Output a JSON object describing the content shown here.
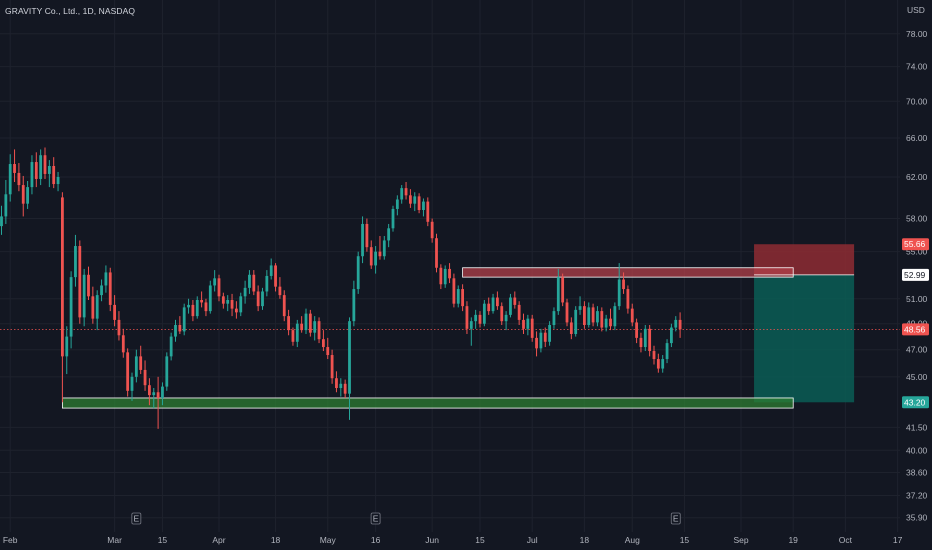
{
  "header": {
    "symbol": "GRAVITY Co., Ltd., 1D, NASDAQ"
  },
  "colors": {
    "background": "#131722",
    "grid": "#1e222d",
    "up": "#26a69a",
    "down": "#ef5350",
    "text": "#b2b5be",
    "support_zone": "#2e7d32",
    "resistance_zone": "#b2404a",
    "stop_zone": "#8e2c33",
    "target_zone": "#0b5d55"
  },
  "chart_data": {
    "type": "candlestick",
    "y_unit": "USD",
    "ylim": [
      35.2,
      80.0
    ],
    "y_scale": "log",
    "grid": true,
    "y_ticks": [
      {
        "value": 78.0,
        "label": "78.00"
      },
      {
        "value": 74.0,
        "label": "74.00"
      },
      {
        "value": 70.0,
        "label": "70.00"
      },
      {
        "value": 66.0,
        "label": "66.00"
      },
      {
        "value": 62.0,
        "label": "62.00"
      },
      {
        "value": 58.0,
        "label": "58.00"
      },
      {
        "value": 55.0,
        "label": "55.00"
      },
      {
        "value": 51.0,
        "label": "51.00"
      },
      {
        "value": 49.0,
        "label": "49.00"
      },
      {
        "value": 47.0,
        "label": "47.00"
      },
      {
        "value": 45.0,
        "label": "45.00"
      },
      {
        "value": 41.5,
        "label": "41.50"
      },
      {
        "value": 40.0,
        "label": "40.00"
      },
      {
        "value": 38.6,
        "label": "38.60"
      },
      {
        "value": 37.2,
        "label": "37.20"
      },
      {
        "value": 35.9,
        "label": "35.90"
      }
    ],
    "x_ticks": [
      {
        "index": 2,
        "label": "Feb"
      },
      {
        "index": 26,
        "label": "Mar"
      },
      {
        "index": 37,
        "label": "15"
      },
      {
        "index": 50,
        "label": "Apr"
      },
      {
        "index": 63,
        "label": "18"
      },
      {
        "index": 75,
        "label": "May"
      },
      {
        "index": 86,
        "label": "16"
      },
      {
        "index": 99,
        "label": "Jun"
      },
      {
        "index": 110,
        "label": "15"
      },
      {
        "index": 122,
        "label": "Jul"
      },
      {
        "index": 134,
        "label": "18"
      },
      {
        "index": 145,
        "label": "Aug"
      },
      {
        "index": 157,
        "label": "15"
      },
      {
        "index": 170,
        "label": "Sep"
      },
      {
        "index": 182,
        "label": "19"
      },
      {
        "index": 194,
        "label": "Oct"
      },
      {
        "index": 206,
        "label": "17"
      }
    ],
    "earnings_markers": [
      {
        "index": 31,
        "label": "E"
      },
      {
        "index": 86,
        "label": "E"
      },
      {
        "index": 155,
        "label": "E"
      }
    ],
    "candles_ohlc": [
      [
        57.3,
        59.2,
        56.5,
        58.2
      ],
      [
        58.2,
        61.7,
        57.5,
        60.3
      ],
      [
        60.3,
        64.3,
        59.6,
        63.3
      ],
      [
        63.3,
        64.8,
        61.5,
        62.4
      ],
      [
        62.4,
        63.4,
        60.6,
        61.2
      ],
      [
        61.2,
        62.1,
        58.2,
        59.4
      ],
      [
        59.4,
        61.6,
        58.9,
        61.0
      ],
      [
        61.0,
        64.2,
        60.3,
        63.5
      ],
      [
        63.5,
        64.5,
        61.0,
        61.8
      ],
      [
        61.8,
        64.8,
        61.2,
        64.2
      ],
      [
        64.2,
        65.0,
        61.8,
        62.3
      ],
      [
        62.3,
        63.7,
        61.0,
        63.1
      ],
      [
        63.1,
        64.0,
        60.9,
        61.3
      ],
      [
        61.3,
        62.5,
        60.6,
        62.0
      ],
      [
        60.0,
        60.5,
        43.2,
        46.5
      ],
      [
        46.5,
        48.8,
        45.2,
        48.0
      ],
      [
        48.0,
        53.3,
        47.1,
        52.8
      ],
      [
        52.8,
        56.5,
        52.0,
        55.5
      ],
      [
        55.5,
        56.0,
        49.0,
        49.5
      ],
      [
        49.5,
        53.5,
        48.8,
        53.0
      ],
      [
        53.0,
        53.7,
        50.9,
        51.2
      ],
      [
        51.2,
        52.0,
        49.0,
        49.4
      ],
      [
        49.4,
        51.7,
        48.5,
        51.3
      ],
      [
        51.3,
        52.6,
        50.8,
        52.1
      ],
      [
        52.1,
        53.8,
        51.5,
        53.2
      ],
      [
        53.2,
        53.6,
        50.0,
        50.5
      ],
      [
        50.5,
        51.3,
        48.8,
        49.3
      ],
      [
        49.3,
        50.0,
        47.7,
        48.1
      ],
      [
        48.1,
        48.6,
        46.4,
        46.8
      ],
      [
        46.8,
        47.1,
        43.6,
        44.0
      ],
      [
        44.0,
        45.3,
        43.3,
        45.0
      ],
      [
        45.0,
        47.0,
        44.6,
        46.5
      ],
      [
        46.5,
        47.3,
        45.2,
        45.5
      ],
      [
        45.5,
        46.2,
        44.0,
        44.4
      ],
      [
        44.4,
        44.9,
        43.0,
        43.7
      ],
      [
        43.7,
        44.2,
        42.8,
        43.9
      ],
      [
        43.9,
        45.0,
        41.4,
        43.5
      ],
      [
        43.5,
        44.6,
        43.0,
        44.3
      ],
      [
        44.3,
        46.8,
        44.0,
        46.5
      ],
      [
        46.5,
        48.3,
        46.2,
        48.0
      ],
      [
        48.0,
        49.3,
        47.6,
        48.9
      ],
      [
        48.9,
        49.6,
        48.2,
        48.4
      ],
      [
        48.4,
        50.6,
        48.1,
        50.3
      ],
      [
        50.3,
        51.0,
        49.8,
        50.5
      ],
      [
        50.5,
        50.9,
        49.2,
        49.6
      ],
      [
        49.6,
        51.2,
        49.4,
        50.9
      ],
      [
        50.9,
        51.6,
        50.3,
        50.7
      ],
      [
        50.7,
        51.0,
        49.6,
        50.0
      ],
      [
        50.0,
        52.5,
        49.8,
        52.1
      ],
      [
        52.1,
        53.4,
        51.6,
        52.7
      ],
      [
        52.7,
        53.0,
        50.8,
        51.2
      ],
      [
        51.2,
        51.5,
        50.2,
        50.6
      ],
      [
        50.6,
        51.3,
        50.0,
        50.9
      ],
      [
        50.9,
        51.4,
        49.6,
        50.2
      ],
      [
        50.2,
        50.8,
        49.4,
        49.9
      ],
      [
        49.9,
        51.5,
        49.6,
        51.2
      ],
      [
        51.2,
        52.5,
        50.6,
        51.9
      ],
      [
        51.9,
        53.4,
        51.4,
        53.0
      ],
      [
        53.0,
        53.4,
        51.3,
        51.6
      ],
      [
        51.6,
        52.1,
        50.0,
        50.4
      ],
      [
        50.4,
        51.9,
        50.1,
        51.6
      ],
      [
        51.6,
        53.4,
        51.2,
        52.9
      ],
      [
        52.9,
        54.4,
        52.6,
        53.8
      ],
      [
        53.8,
        54.0,
        51.6,
        52.0
      ],
      [
        52.0,
        52.8,
        51.0,
        51.3
      ],
      [
        51.3,
        51.7,
        49.2,
        49.6
      ],
      [
        49.6,
        50.1,
        48.1,
        48.5
      ],
      [
        48.5,
        48.7,
        47.3,
        47.6
      ],
      [
        47.6,
        49.3,
        47.2,
        49.0
      ],
      [
        49.0,
        49.6,
        48.3,
        48.5
      ],
      [
        48.5,
        50.2,
        48.2,
        49.8
      ],
      [
        49.8,
        50.1,
        48.0,
        48.3
      ],
      [
        48.3,
        49.6,
        47.7,
        49.2
      ],
      [
        49.2,
        49.5,
        47.5,
        47.8
      ],
      [
        47.8,
        48.5,
        46.9,
        47.2
      ],
      [
        47.2,
        47.9,
        46.3,
        46.6
      ],
      [
        46.6,
        47.0,
        44.5,
        44.9
      ],
      [
        44.9,
        45.4,
        43.9,
        44.2
      ],
      [
        44.2,
        44.9,
        43.6,
        44.5
      ],
      [
        44.5,
        44.8,
        43.5,
        43.8
      ],
      [
        43.8,
        49.5,
        42.0,
        49.2
      ],
      [
        49.2,
        52.5,
        48.8,
        51.8
      ],
      [
        51.8,
        55.0,
        51.4,
        54.6
      ],
      [
        54.6,
        58.2,
        54.0,
        57.5
      ],
      [
        57.5,
        58.0,
        55.0,
        55.4
      ],
      [
        55.4,
        56.0,
        53.5,
        53.8
      ],
      [
        53.8,
        55.5,
        53.1,
        55.0
      ],
      [
        55.0,
        56.4,
        54.3,
        54.6
      ],
      [
        54.6,
        56.4,
        54.3,
        56.0
      ],
      [
        56.0,
        57.5,
        55.4,
        57.1
      ],
      [
        57.1,
        59.2,
        56.8,
        58.9
      ],
      [
        58.9,
        60.2,
        58.3,
        59.8
      ],
      [
        59.8,
        61.2,
        59.4,
        60.9
      ],
      [
        60.9,
        61.5,
        59.8,
        60.2
      ],
      [
        60.2,
        60.8,
        59.0,
        59.4
      ],
      [
        59.4,
        60.5,
        58.7,
        60.1
      ],
      [
        60.1,
        60.4,
        58.5,
        58.8
      ],
      [
        58.8,
        59.9,
        58.2,
        59.6
      ],
      [
        59.6,
        60.0,
        57.3,
        57.7
      ],
      [
        57.7,
        58.0,
        55.8,
        56.2
      ],
      [
        56.2,
        56.6,
        53.2,
        53.6
      ],
      [
        53.6,
        53.9,
        51.8,
        52.2
      ],
      [
        52.2,
        53.8,
        51.9,
        53.5
      ],
      [
        53.5,
        54.0,
        52.3,
        52.7
      ],
      [
        52.7,
        53.1,
        50.3,
        50.6
      ],
      [
        50.6,
        52.1,
        50.3,
        51.8
      ],
      [
        51.8,
        52.2,
        50.0,
        50.4
      ],
      [
        50.4,
        50.8,
        48.2,
        48.6
      ],
      [
        48.6,
        49.5,
        47.3,
        49.2
      ],
      [
        49.2,
        50.1,
        48.6,
        49.7
      ],
      [
        49.7,
        50.0,
        48.7,
        49.0
      ],
      [
        49.0,
        50.9,
        48.8,
        50.6
      ],
      [
        50.6,
        51.1,
        49.7,
        50.0
      ],
      [
        50.0,
        51.4,
        49.8,
        51.1
      ],
      [
        51.1,
        51.6,
        50.1,
        50.4
      ],
      [
        50.4,
        50.7,
        48.9,
        49.2
      ],
      [
        49.2,
        50.0,
        48.5,
        49.7
      ],
      [
        49.7,
        51.4,
        49.5,
        51.1
      ],
      [
        51.1,
        51.6,
        50.2,
        50.5
      ],
      [
        50.5,
        50.8,
        48.9,
        49.3
      ],
      [
        49.3,
        49.8,
        48.2,
        48.6
      ],
      [
        48.6,
        49.7,
        48.1,
        49.4
      ],
      [
        49.4,
        49.7,
        47.6,
        47.9
      ],
      [
        47.9,
        48.4,
        46.5,
        47.1
      ],
      [
        47.1,
        48.6,
        46.8,
        48.3
      ],
      [
        48.3,
        48.7,
        47.2,
        47.6
      ],
      [
        47.6,
        49.2,
        47.3,
        48.9
      ],
      [
        48.9,
        50.3,
        48.6,
        50.0
      ],
      [
        50.0,
        53.5,
        49.7,
        52.8
      ],
      [
        52.8,
        53.1,
        50.4,
        50.7
      ],
      [
        50.7,
        51.0,
        48.8,
        49.1
      ],
      [
        49.1,
        49.5,
        47.8,
        48.2
      ],
      [
        48.2,
        50.4,
        48.0,
        50.1
      ],
      [
        50.1,
        51.2,
        49.7,
        50.4
      ],
      [
        50.4,
        50.8,
        48.6,
        48.9
      ],
      [
        48.9,
        50.7,
        48.7,
        50.3
      ],
      [
        50.3,
        50.6,
        48.8,
        49.1
      ],
      [
        49.1,
        50.4,
        48.8,
        50.0
      ],
      [
        50.0,
        50.3,
        48.4,
        48.7
      ],
      [
        48.7,
        49.7,
        48.4,
        49.4
      ],
      [
        49.4,
        50.2,
        48.5,
        48.8
      ],
      [
        48.8,
        50.7,
        48.5,
        50.4
      ],
      [
        50.4,
        54.0,
        50.1,
        52.6
      ],
      [
        52.6,
        53.2,
        51.4,
        51.8
      ],
      [
        51.8,
        52.1,
        49.8,
        50.2
      ],
      [
        50.2,
        50.6,
        48.8,
        49.1
      ],
      [
        49.1,
        49.4,
        47.5,
        47.9
      ],
      [
        47.9,
        48.3,
        46.8,
        47.2
      ],
      [
        47.2,
        48.9,
        46.9,
        48.6
      ],
      [
        48.6,
        48.9,
        46.5,
        46.9
      ],
      [
        46.9,
        47.3,
        45.9,
        46.3
      ],
      [
        46.3,
        46.7,
        45.3,
        45.6
      ],
      [
        45.6,
        46.6,
        45.3,
        46.3
      ],
      [
        46.3,
        47.8,
        46.0,
        47.5
      ],
      [
        47.5,
        49.0,
        47.2,
        48.7
      ],
      [
        48.7,
        49.6,
        48.4,
        49.3
      ],
      [
        49.3,
        49.9,
        47.9,
        48.56
      ]
    ],
    "price_tags": [
      {
        "value": 55.66,
        "label": "55.66",
        "color": "#ef5350"
      },
      {
        "value": 52.99,
        "label": "52.99",
        "color": "#ffffff"
      },
      {
        "value": 48.56,
        "label": "48.56",
        "color": "#ef5350"
      },
      {
        "value": 43.2,
        "label": "43.20",
        "color": "#26a69a"
      }
    ],
    "zones": [
      {
        "kind": "support",
        "from_index": 14,
        "to_index": 182,
        "low": 42.8,
        "high": 43.5
      },
      {
        "kind": "resistance",
        "from_index": 106,
        "to_index": 182,
        "low": 52.8,
        "high": 53.6
      },
      {
        "kind": "stop",
        "from_index": 173,
        "to_index": 196,
        "low": 52.99,
        "high": 55.66
      },
      {
        "kind": "target",
        "from_index": 173,
        "to_index": 196,
        "low": 43.2,
        "high": 52.99
      }
    ],
    "current_price": 48.56
  }
}
